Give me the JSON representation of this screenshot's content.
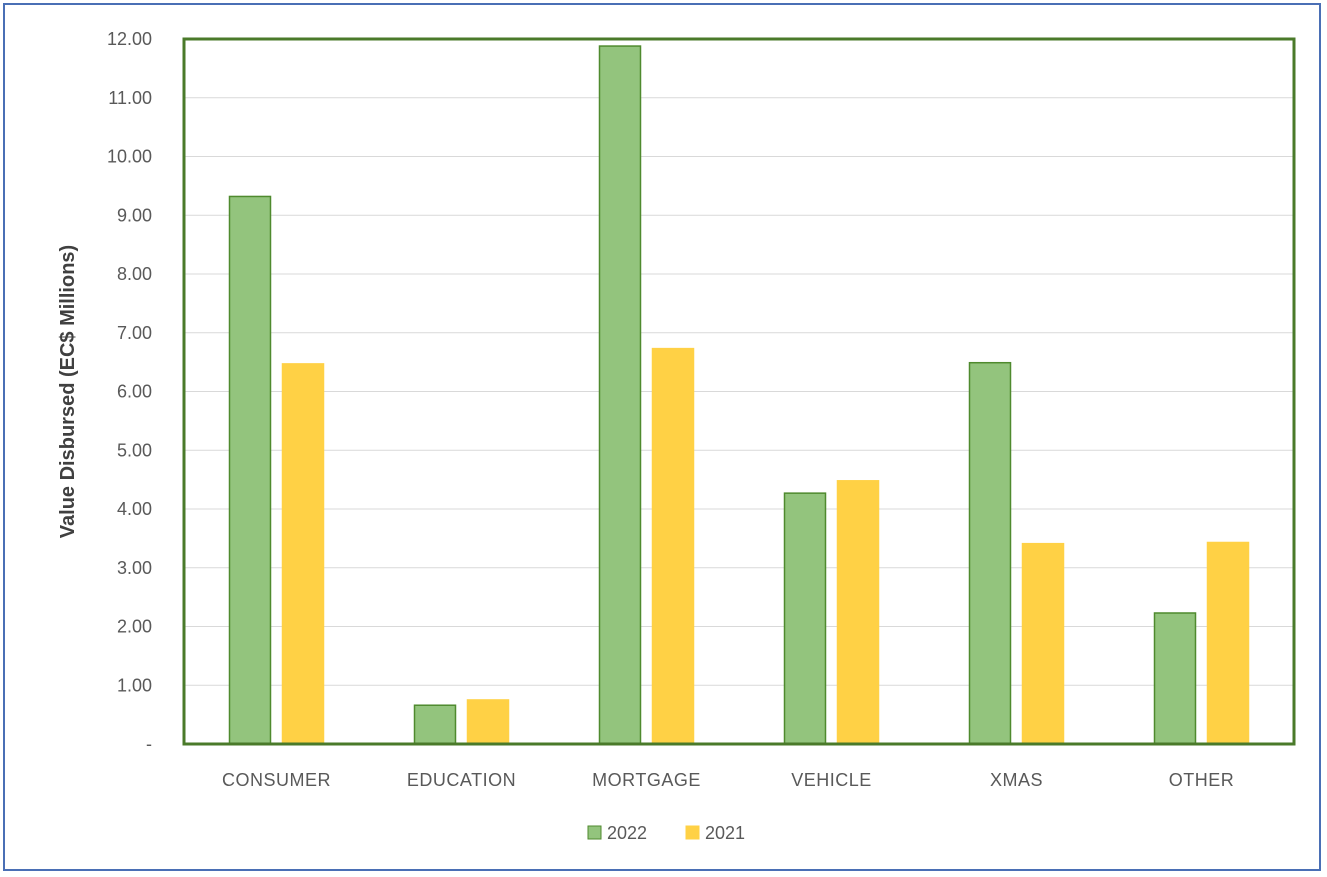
{
  "chart_data": {
    "type": "bar",
    "ylabel": "Value Disbursed (EC$ Millions)",
    "xlabel": "",
    "categories": [
      "CONSUMER",
      "EDUCATION",
      "MORTGAGE",
      "VEHICLE",
      "XMAS",
      "OTHER"
    ],
    "series": [
      {
        "name": "2022",
        "values": [
          9.32,
          0.66,
          11.88,
          4.27,
          6.49,
          2.23
        ],
        "color": "#93c47d",
        "edge": "#4f8a2e"
      },
      {
        "name": "2021",
        "values": [
          6.47,
          0.75,
          6.73,
          4.48,
          3.41,
          3.43
        ],
        "color": "#ffd145",
        "edge": "#ffd145"
      }
    ],
    "ylim": [
      0,
      12
    ],
    "yticks": [
      "-",
      "1.00",
      "2.00",
      "3.00",
      "4.00",
      "5.00",
      "6.00",
      "7.00",
      "8.00",
      "9.00",
      "10.00",
      "11.00",
      "12.00"
    ],
    "grid": true,
    "legend_position": "bottom",
    "plot_border_color": "#4a7a2a"
  }
}
